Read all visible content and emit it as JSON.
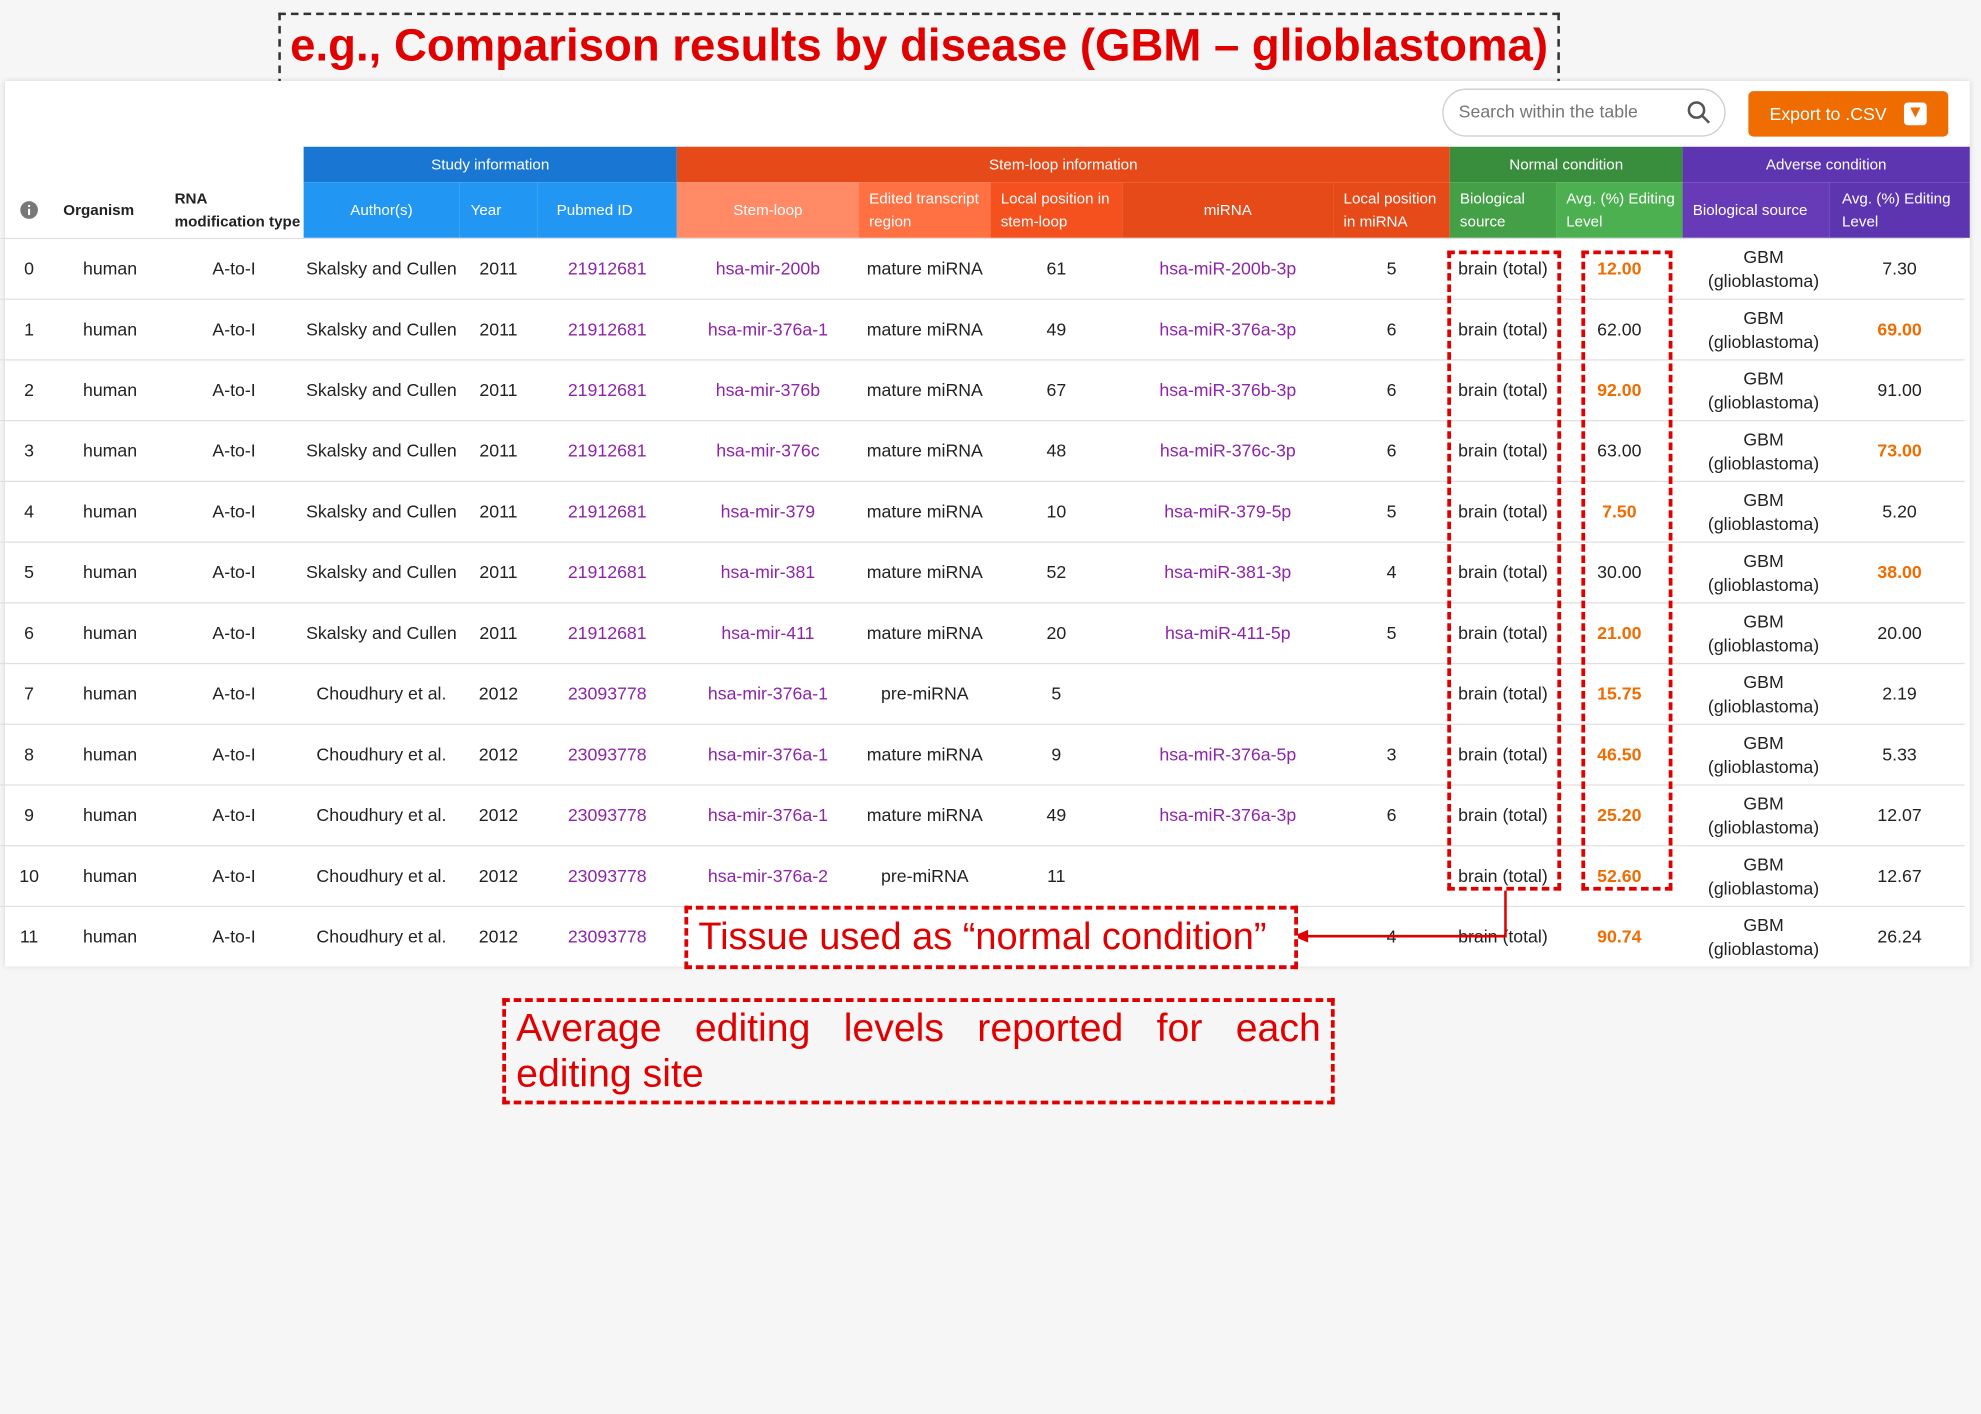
{
  "annotation_title": "e.g., Comparison results by disease (GBM – glioblastoma)",
  "search": {
    "placeholder": "Search within the table"
  },
  "export_label": "Export to .CSV",
  "groups": {
    "study": "Study information",
    "stemloop": "Stem-loop information",
    "normal": "Normal condition",
    "adverse": "Adverse condition"
  },
  "columns": {
    "organism": "Organism",
    "rna_mod": "RNA modification type",
    "authors": "Author(s)",
    "year": "Year",
    "pubmed": "Pubmed ID",
    "stemloop": "Stem-loop",
    "edited_region": "Edited transcript region",
    "local_pos_stem": "Local position in stem-loop",
    "mirna": "miRNA",
    "local_pos_mirna": "Local position in miRNA",
    "bio_source_n": "Biological source",
    "avg_edit_n": "Avg. (%) Editing Level",
    "bio_source_a": "Biological source",
    "avg_edit_a": "Avg. (%) Editing Level"
  },
  "rows": [
    {
      "idx": "0",
      "organism": "human",
      "mod": "A-to-I",
      "author": "Skalsky and Cullen",
      "year": "2011",
      "pubmed": "21912681",
      "stemloop": "hsa-mir-200b",
      "region": "mature miRNA",
      "pos_stem": "61",
      "mirna": "hsa-miR-200b-3p",
      "pos_mirna": "5",
      "bio_n": "brain (total)",
      "edit_n": "12.00",
      "bio_a": "GBM (glioblastoma)",
      "edit_a": "7.30",
      "hl": "n"
    },
    {
      "idx": "1",
      "organism": "human",
      "mod": "A-to-I",
      "author": "Skalsky and Cullen",
      "year": "2011",
      "pubmed": "21912681",
      "stemloop": "hsa-mir-376a-1",
      "region": "mature miRNA",
      "pos_stem": "49",
      "mirna": "hsa-miR-376a-3p",
      "pos_mirna": "6",
      "bio_n": "brain (total)",
      "edit_n": "62.00",
      "bio_a": "GBM (glioblastoma)",
      "edit_a": "69.00",
      "hl": "a"
    },
    {
      "idx": "2",
      "organism": "human",
      "mod": "A-to-I",
      "author": "Skalsky and Cullen",
      "year": "2011",
      "pubmed": "21912681",
      "stemloop": "hsa-mir-376b",
      "region": "mature miRNA",
      "pos_stem": "67",
      "mirna": "hsa-miR-376b-3p",
      "pos_mirna": "6",
      "bio_n": "brain (total)",
      "edit_n": "92.00",
      "bio_a": "GBM (glioblastoma)",
      "edit_a": "91.00",
      "hl": "n"
    },
    {
      "idx": "3",
      "organism": "human",
      "mod": "A-to-I",
      "author": "Skalsky and Cullen",
      "year": "2011",
      "pubmed": "21912681",
      "stemloop": "hsa-mir-376c",
      "region": "mature miRNA",
      "pos_stem": "48",
      "mirna": "hsa-miR-376c-3p",
      "pos_mirna": "6",
      "bio_n": "brain (total)",
      "edit_n": "63.00",
      "bio_a": "GBM (glioblastoma)",
      "edit_a": "73.00",
      "hl": "a"
    },
    {
      "idx": "4",
      "organism": "human",
      "mod": "A-to-I",
      "author": "Skalsky and Cullen",
      "year": "2011",
      "pubmed": "21912681",
      "stemloop": "hsa-mir-379",
      "region": "mature miRNA",
      "pos_stem": "10",
      "mirna": "hsa-miR-379-5p",
      "pos_mirna": "5",
      "bio_n": "brain (total)",
      "edit_n": "7.50",
      "bio_a": "GBM (glioblastoma)",
      "edit_a": "5.20",
      "hl": "n"
    },
    {
      "idx": "5",
      "organism": "human",
      "mod": "A-to-I",
      "author": "Skalsky and Cullen",
      "year": "2011",
      "pubmed": "21912681",
      "stemloop": "hsa-mir-381",
      "region": "mature miRNA",
      "pos_stem": "52",
      "mirna": "hsa-miR-381-3p",
      "pos_mirna": "4",
      "bio_n": "brain (total)",
      "edit_n": "30.00",
      "bio_a": "GBM (glioblastoma)",
      "edit_a": "38.00",
      "hl": "a"
    },
    {
      "idx": "6",
      "organism": "human",
      "mod": "A-to-I",
      "author": "Skalsky and Cullen",
      "year": "2011",
      "pubmed": "21912681",
      "stemloop": "hsa-mir-411",
      "region": "mature miRNA",
      "pos_stem": "20",
      "mirna": "hsa-miR-411-5p",
      "pos_mirna": "5",
      "bio_n": "brain (total)",
      "edit_n": "21.00",
      "bio_a": "GBM (glioblastoma)",
      "edit_a": "20.00",
      "hl": "n"
    },
    {
      "idx": "7",
      "organism": "human",
      "mod": "A-to-I",
      "author": "Choudhury et al.",
      "year": "2012",
      "pubmed": "23093778",
      "stemloop": "hsa-mir-376a-1",
      "region": "pre-miRNA",
      "pos_stem": "5",
      "mirna": "",
      "pos_mirna": "",
      "bio_n": "brain (total)",
      "edit_n": "15.75",
      "bio_a": "GBM (glioblastoma)",
      "edit_a": "2.19",
      "hl": "n"
    },
    {
      "idx": "8",
      "organism": "human",
      "mod": "A-to-I",
      "author": "Choudhury et al.",
      "year": "2012",
      "pubmed": "23093778",
      "stemloop": "hsa-mir-376a-1",
      "region": "mature miRNA",
      "pos_stem": "9",
      "mirna": "hsa-miR-376a-5p",
      "pos_mirna": "3",
      "bio_n": "brain (total)",
      "edit_n": "46.50",
      "bio_a": "GBM (glioblastoma)",
      "edit_a": "5.33",
      "hl": "n"
    },
    {
      "idx": "9",
      "organism": "human",
      "mod": "A-to-I",
      "author": "Choudhury et al.",
      "year": "2012",
      "pubmed": "23093778",
      "stemloop": "hsa-mir-376a-1",
      "region": "mature miRNA",
      "pos_stem": "49",
      "mirna": "hsa-miR-376a-3p",
      "pos_mirna": "6",
      "bio_n": "brain (total)",
      "edit_n": "25.20",
      "bio_a": "GBM (glioblastoma)",
      "edit_a": "12.07",
      "hl": "n"
    },
    {
      "idx": "10",
      "organism": "human",
      "mod": "A-to-I",
      "author": "Choudhury et al.",
      "year": "2012",
      "pubmed": "23093778",
      "stemloop": "hsa-mir-376a-2",
      "region": "pre-miRNA",
      "pos_stem": "11",
      "mirna": "",
      "pos_mirna": "",
      "bio_n": "brain (total)",
      "edit_n": "52.60",
      "bio_a": "GBM (glioblastoma)",
      "edit_a": "12.67",
      "hl": "n"
    },
    {
      "idx": "11",
      "organism": "human",
      "mod": "A-to-I",
      "author": "Choudhury et al.",
      "year": "2012",
      "pubmed": "23093778",
      "stemloop": "",
      "region": "",
      "pos_stem": "",
      "mirna": "",
      "pos_mirna": "4",
      "bio_n": "brain (total)",
      "edit_n": "90.74",
      "bio_a": "GBM (glioblastoma)",
      "edit_a": "26.24",
      "hl": "n"
    }
  ],
  "annotation_tissue": "Tissue used as “normal condition”",
  "annotation_avg": "Average editing levels reported for each editing site",
  "colors": {
    "study_group": "#1976d2",
    "study_sub": "#2196f3",
    "stem_group": "#e64a19",
    "stem_sub": "#ff7043",
    "stem_sub_dark": "#f4511e",
    "normal_group": "#388e3c",
    "normal_sub": "#4caf50",
    "adverse_group": "#5e35b1",
    "adverse_sub": "#673ab7",
    "link": "#8e24aa",
    "highlight": "#ef6c00",
    "annotation": "#e00000"
  }
}
